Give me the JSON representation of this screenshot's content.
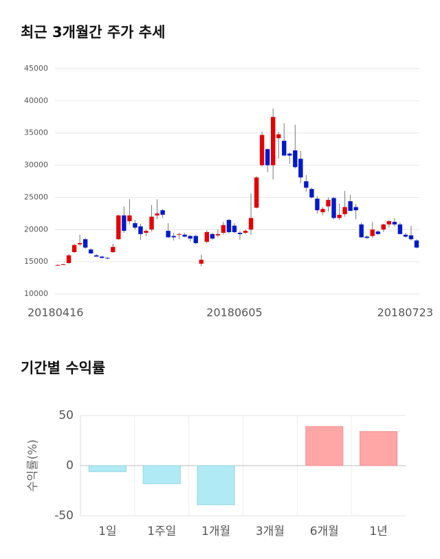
{
  "chart_data": [
    {
      "type": "candlestick",
      "title": "최근 3개월간 주가 추세",
      "categories": [
        "20180416",
        null,
        null,
        null,
        null,
        null,
        null,
        null,
        null,
        null,
        null,
        null,
        null,
        null,
        null,
        null,
        null,
        null,
        null,
        null,
        null,
        null,
        null,
        null,
        null,
        null,
        null,
        null,
        null,
        null,
        null,
        null,
        "20180605",
        null,
        null,
        null,
        null,
        null,
        null,
        null,
        null,
        null,
        null,
        null,
        null,
        null,
        null,
        null,
        null,
        null,
        null,
        null,
        null,
        null,
        null,
        null,
        null,
        null,
        null,
        null,
        null,
        null,
        null,
        null,
        "20180723",
        null
      ],
      "ohlc": [
        [
          14500,
          14600,
          14400,
          14500
        ],
        [
          14600,
          14700,
          14500,
          14600
        ],
        [
          14800,
          16200,
          14700,
          16000
        ],
        [
          16500,
          17800,
          16400,
          17600
        ],
        [
          17700,
          19200,
          17500,
          17900
        ],
        [
          18500,
          18700,
          17000,
          17200
        ],
        [
          16900,
          17100,
          16200,
          16300
        ],
        [
          16000,
          16200,
          15800,
          15800
        ],
        [
          15800,
          15900,
          15500,
          15600
        ],
        [
          15600,
          15700,
          15400,
          15500
        ],
        [
          16500,
          17800,
          16400,
          17300
        ],
        [
          18500,
          22300,
          18400,
          22200
        ],
        [
          22200,
          23600,
          19500,
          19800
        ],
        [
          21300,
          24700,
          20800,
          22200
        ],
        [
          21000,
          21500,
          20000,
          20300
        ],
        [
          20500,
          20900,
          18400,
          19300
        ],
        [
          19500,
          20000,
          19000,
          19800
        ],
        [
          20000,
          23800,
          19700,
          22000
        ],
        [
          22200,
          24700,
          21600,
          22500
        ],
        [
          23000,
          23200,
          21800,
          22300
        ],
        [
          19800,
          21000,
          18700,
          18800
        ],
        [
          19000,
          19500,
          18300,
          18800
        ],
        [
          19200,
          19500,
          18500,
          19300
        ],
        [
          19200,
          19500,
          18800,
          18900
        ],
        [
          19000,
          19200,
          18100,
          18600
        ],
        [
          19000,
          19200,
          17700,
          17900
        ],
        [
          14700,
          16100,
          14300,
          15300
        ],
        [
          18100,
          19900,
          17900,
          19600
        ],
        [
          19300,
          19500,
          18400,
          18600
        ],
        [
          19100,
          20000,
          18800,
          19300
        ],
        [
          19500,
          21200,
          19200,
          20700
        ],
        [
          21500,
          21600,
          19400,
          19600
        ],
        [
          20600,
          21000,
          19400,
          19600
        ],
        [
          19500,
          19800,
          18400,
          19300
        ],
        [
          19500,
          20000,
          19300,
          19800
        ],
        [
          20000,
          25600,
          19200,
          21800
        ],
        [
          23400,
          28300,
          23300,
          28100
        ],
        [
          30000,
          35200,
          29800,
          34700
        ],
        [
          32500,
          32600,
          28900,
          30000
        ],
        [
          30000,
          38800,
          27800,
          37500
        ],
        [
          34200,
          35200,
          31000,
          34800
        ],
        [
          33800,
          36500,
          31600,
          31500
        ],
        [
          31800,
          32000,
          30200,
          31500
        ],
        [
          32300,
          36300,
          29500,
          29700
        ],
        [
          31000,
          32200,
          27200,
          28100
        ],
        [
          27500,
          28500,
          25900,
          26500
        ],
        [
          26300,
          26500,
          24800,
          25000
        ],
        [
          24800,
          25200,
          22500,
          23000
        ],
        [
          22700,
          23500,
          22200,
          23200
        ],
        [
          23600,
          25000,
          22800,
          24600
        ],
        [
          24900,
          25100,
          21600,
          21800
        ],
        [
          21800,
          24000,
          21500,
          22300
        ],
        [
          22400,
          26000,
          22000,
          23500
        ],
        [
          24400,
          25400,
          23100,
          22900
        ],
        [
          23500,
          24000,
          21600,
          23000
        ],
        [
          20800,
          21100,
          18700,
          18800
        ],
        [
          18900,
          19100,
          18600,
          18700
        ],
        [
          19000,
          21200,
          18700,
          20000
        ],
        [
          19700,
          19900,
          19200,
          19300
        ],
        [
          20000,
          20900,
          19600,
          20800
        ],
        [
          20800,
          21500,
          20300,
          21300
        ],
        [
          21200,
          21800,
          20500,
          20800
        ],
        [
          20800,
          21100,
          19500,
          19300
        ],
        [
          19200,
          19500,
          18700,
          18900
        ],
        [
          19100,
          20600,
          18300,
          18500
        ],
        [
          18300,
          18500,
          17100,
          17200
        ]
      ],
      "up_color": "#e60000",
      "down_color": "#0019cc",
      "ylim": [
        10000,
        45000
      ],
      "yticks": [
        10000,
        15000,
        20000,
        25000,
        30000,
        35000,
        40000,
        45000
      ],
      "grid": true
    },
    {
      "type": "bar",
      "title": "기간별 수익률",
      "ylabel": "수익률(%)",
      "categories": [
        "1일",
        "1주일",
        "1개월",
        "3개월",
        "6개월",
        "1년"
      ],
      "values": [
        -6,
        -18,
        -39,
        null,
        39,
        34
      ],
      "positive_color": "#ffa6a6",
      "negative_color": "#b0eaf4",
      "ylim": [
        -50,
        50
      ],
      "yticks": [
        -50,
        0,
        50
      ],
      "grid": true
    }
  ]
}
